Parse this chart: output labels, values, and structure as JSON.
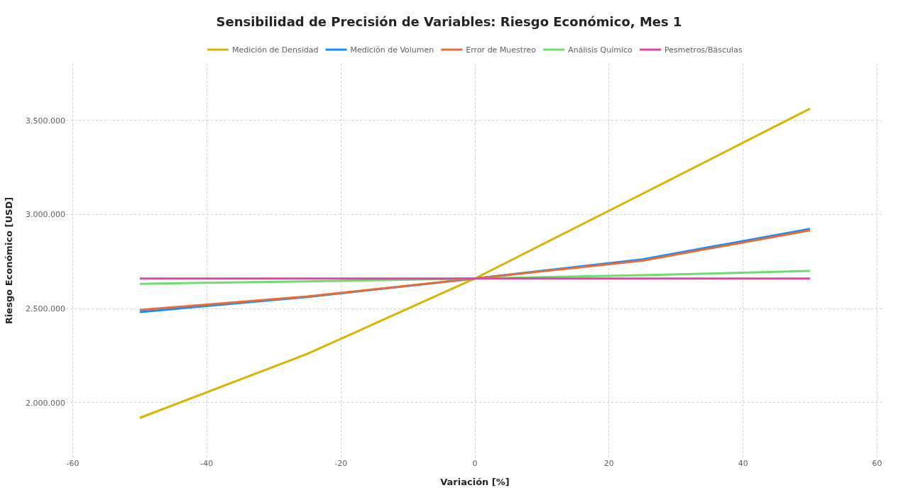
{
  "chart_data": {
    "type": "line",
    "title": "Sensibilidad de Precisión de Variables: Riesgo Económico, Mes 1",
    "xlabel": "Variación [%]",
    "ylabel": "Riesgo Económico [USD]",
    "x": [
      -50,
      -25,
      0,
      25,
      50
    ],
    "series": [
      {
        "name": "Medición de Densidad",
        "color": "#d9b300",
        "values": [
          1920000,
          2260000,
          2660000,
          3110000,
          3562000
        ]
      },
      {
        "name": "Medición de Volumen",
        "color": "#118dff",
        "values": [
          2482000,
          2562000,
          2660000,
          2762000,
          2924000
        ]
      },
      {
        "name": "Error de Muestreo",
        "color": "#e66c37",
        "values": [
          2493000,
          2565000,
          2660000,
          2755000,
          2916000
        ]
      },
      {
        "name": "Análisis Químico",
        "color": "#6bdf6b",
        "values": [
          2632000,
          2645000,
          2660000,
          2678000,
          2700000
        ]
      },
      {
        "name": "Pesmetros/Básculas",
        "color": "#e044a7",
        "values": [
          2660000,
          2660000,
          2660000,
          2660000,
          2660000
        ]
      }
    ],
    "xlim": [
      -61,
      61
    ],
    "xticks": [
      -60,
      -40,
      -20,
      0,
      20,
      40,
      60
    ],
    "ylim": [
      1710000,
      3800000
    ],
    "yticks": [
      {
        "value": 2000000,
        "label": "2.000.000"
      },
      {
        "value": 2500000,
        "label": "2.500.000"
      },
      {
        "value": 3000000,
        "label": "3.000.000"
      },
      {
        "value": 3500000,
        "label": "3.500.000"
      }
    ],
    "grid": true,
    "legend": "top",
    "marker": "none",
    "line_style": "solid"
  }
}
